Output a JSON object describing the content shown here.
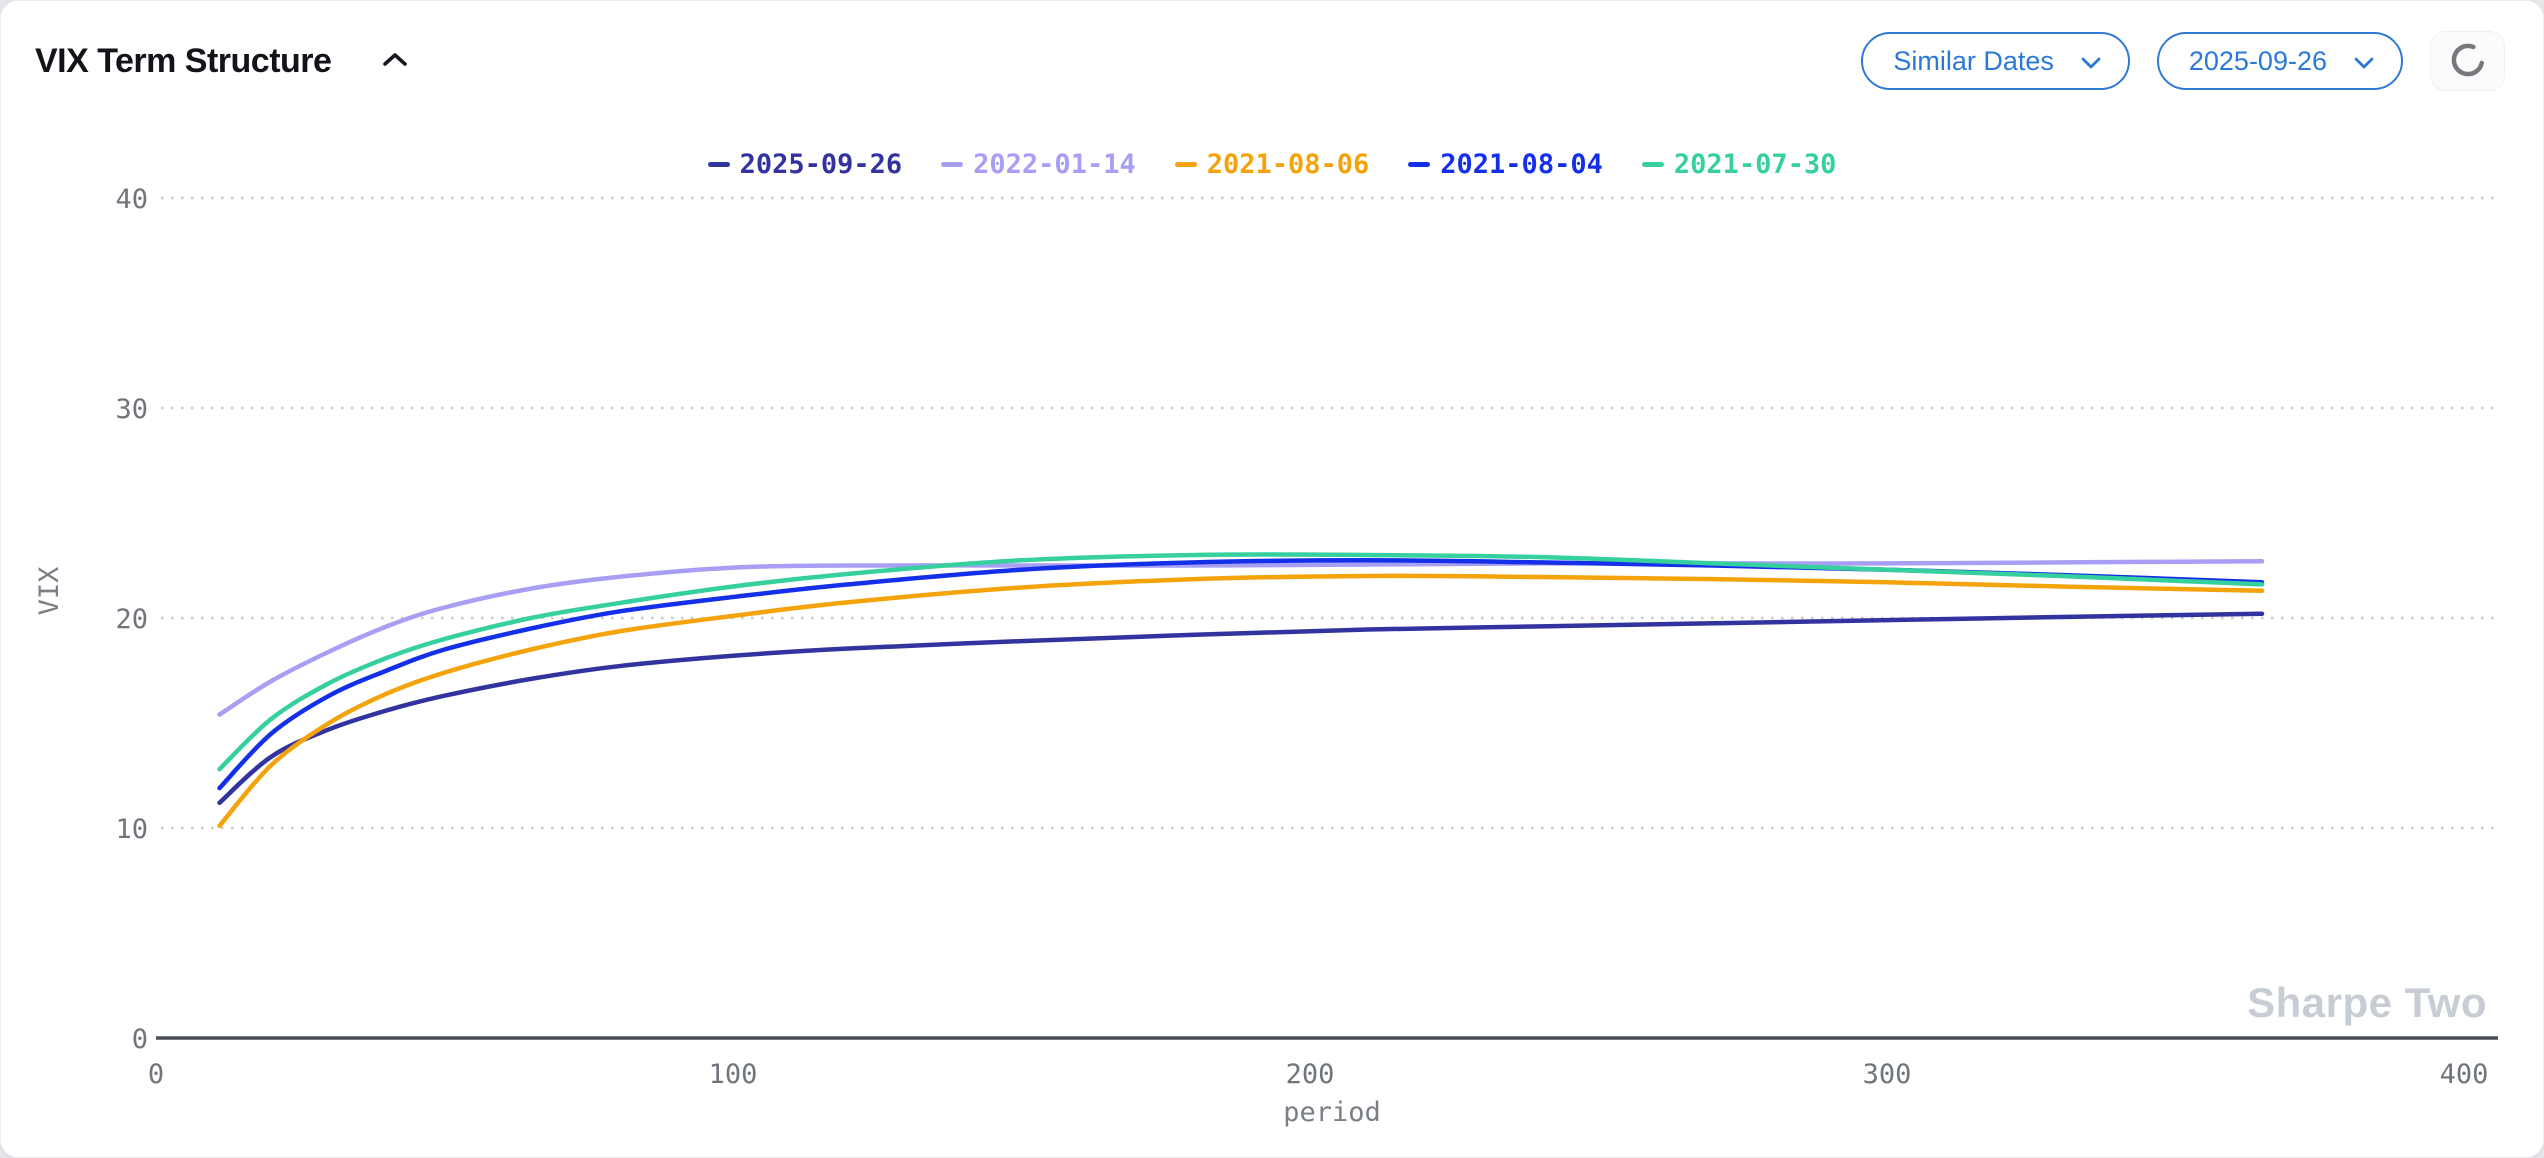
{
  "header": {
    "title": "VIX Term Structure",
    "controls": {
      "similar_dates_label": "Similar Dates",
      "date_selected": "2025-09-26"
    }
  },
  "icons": {
    "title_collapse": "chevron-up-icon",
    "dropdown": "chevron-down-icon",
    "refresh": "loading-spinner-icon"
  },
  "colors": {
    "accent_blue": "#2b79d6",
    "axis": "#4a4f55",
    "gridline": "#c9c9c9",
    "tick_text": "#70757d",
    "watermark": "#c8cdd5",
    "series_navy": "#32339f",
    "series_lavender": "#a89ff4",
    "series_orange": "#f4a30b",
    "series_blue": "#1330e8",
    "series_green": "#36d09e"
  },
  "watermark": "Sharpe Two",
  "chart_data": {
    "type": "line",
    "title": "",
    "xlabel": "period",
    "ylabel": "VIX",
    "xlim": [
      0,
      400
    ],
    "ylim": [
      0,
      40
    ],
    "x_ticks": [
      0,
      100,
      200,
      300,
      400
    ],
    "y_ticks": [
      0,
      10,
      20,
      30,
      40
    ],
    "grid": "horizontal-dotted",
    "legend_position": "top-center",
    "x": [
      11,
      20,
      30,
      40,
      50,
      65,
      80,
      100,
      120,
      150,
      180,
      210,
      240,
      270,
      300,
      330,
      365
    ],
    "series": [
      {
        "name": "2025-09-26",
        "color": "#32339f",
        "values": [
          11.2,
          13.4,
          14.7,
          15.6,
          16.3,
          17.1,
          17.7,
          18.2,
          18.55,
          18.9,
          19.2,
          19.45,
          19.6,
          19.75,
          19.9,
          20.05,
          20.2
        ]
      },
      {
        "name": "2022-01-14",
        "color": "#a89ff4",
        "values": [
          15.4,
          17.0,
          18.4,
          19.6,
          20.5,
          21.4,
          21.95,
          22.4,
          22.5,
          22.5,
          22.5,
          22.55,
          22.6,
          22.6,
          22.6,
          22.65,
          22.7
        ]
      },
      {
        "name": "2021-08-06",
        "color": "#f4a30b",
        "values": [
          10.1,
          13.0,
          15.0,
          16.4,
          17.4,
          18.5,
          19.35,
          20.1,
          20.75,
          21.45,
          21.85,
          22.0,
          21.95,
          21.85,
          21.7,
          21.5,
          21.3
        ]
      },
      {
        "name": "2021-08-04",
        "color": "#1330e8",
        "values": [
          11.9,
          14.5,
          16.3,
          17.5,
          18.5,
          19.5,
          20.3,
          21.0,
          21.6,
          22.3,
          22.65,
          22.75,
          22.65,
          22.5,
          22.3,
          22.05,
          21.7
        ]
      },
      {
        "name": "2021-07-30",
        "color": "#36d09e",
        "values": [
          12.8,
          15.2,
          16.9,
          18.1,
          19.0,
          20.0,
          20.7,
          21.5,
          22.1,
          22.75,
          23.0,
          23.0,
          22.9,
          22.6,
          22.3,
          22.0,
          21.6
        ]
      }
    ]
  }
}
